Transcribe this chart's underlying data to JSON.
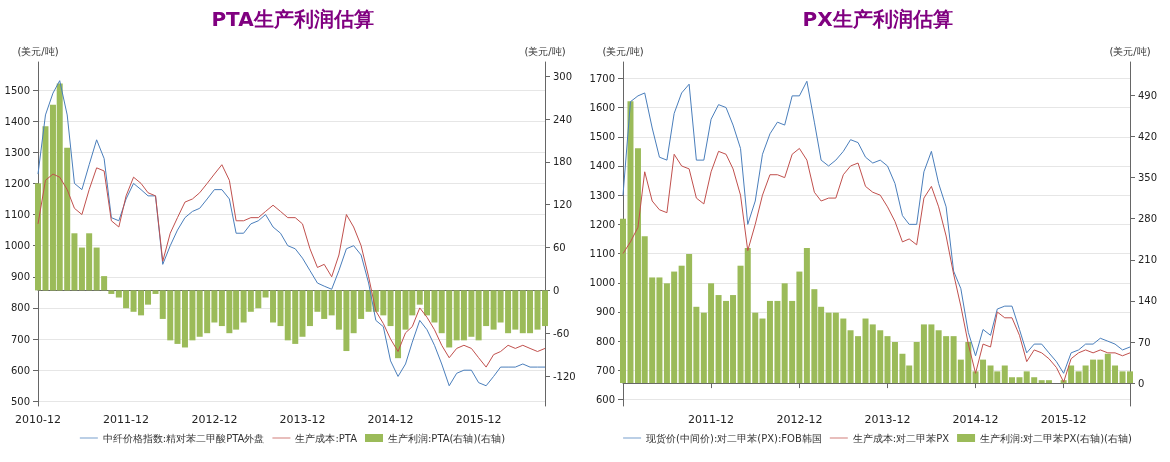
{
  "chart_data": [
    {
      "type": "line",
      "title": "PTA生产利润估算",
      "ylabel": "(美元/吨)",
      "y2label": "(美元/吨)",
      "x": [
        "2010-12",
        "2011-01",
        "2011-02",
        "2011-03",
        "2011-04",
        "2011-05",
        "2011-06",
        "2011-07",
        "2011-08",
        "2011-09",
        "2011-10",
        "2011-11",
        "2011-12",
        "2012-01",
        "2012-02",
        "2012-03",
        "2012-04",
        "2012-05",
        "2012-06",
        "2012-07",
        "2012-08",
        "2012-09",
        "2012-10",
        "2012-11",
        "2012-12",
        "2013-01",
        "2013-02",
        "2013-03",
        "2013-04",
        "2013-05",
        "2013-06",
        "2013-07",
        "2013-08",
        "2013-09",
        "2013-10",
        "2013-11",
        "2013-12",
        "2014-01",
        "2014-02",
        "2014-03",
        "2014-04",
        "2014-05",
        "2014-06",
        "2014-07",
        "2014-08",
        "2014-09",
        "2014-10",
        "2014-11",
        "2014-12",
        "2015-01",
        "2015-02",
        "2015-03",
        "2015-04",
        "2015-05",
        "2015-06",
        "2015-07",
        "2015-08",
        "2015-09",
        "2015-10",
        "2015-11",
        "2015-12",
        "2016-01",
        "2016-02",
        "2016-03",
        "2016-04",
        "2016-05",
        "2016-06",
        "2016-07",
        "2016-08",
        "2016-09"
      ],
      "series": [
        {
          "name": "中纤价格指数:精对苯二甲酸PTA外盘",
          "color": "#4a7ebb",
          "values": [
            1230,
            1420,
            1490,
            1530,
            1420,
            1200,
            1180,
            1260,
            1340,
            1280,
            1090,
            1080,
            1150,
            1200,
            1180,
            1160,
            1160,
            940,
            1000,
            1050,
            1090,
            1110,
            1120,
            1150,
            1180,
            1180,
            1150,
            1040,
            1040,
            1070,
            1080,
            1100,
            1060,
            1040,
            1000,
            990,
            960,
            920,
            880,
            870,
            860,
            920,
            990,
            1000,
            970,
            880,
            760,
            740,
            630,
            580,
            620,
            690,
            760,
            730,
            680,
            620,
            550,
            590,
            600,
            600,
            560,
            550,
            580,
            610,
            610,
            610,
            620,
            610,
            610,
            610
          ]
        },
        {
          "name": "生产成本:PTA",
          "color": "#c0504d",
          "values": [
            1070,
            1210,
            1230,
            1220,
            1180,
            1120,
            1100,
            1180,
            1250,
            1240,
            1080,
            1060,
            1160,
            1220,
            1200,
            1170,
            1160,
            950,
            1040,
            1090,
            1140,
            1150,
            1170,
            1200,
            1230,
            1260,
            1210,
            1080,
            1080,
            1090,
            1090,
            1110,
            1130,
            1110,
            1090,
            1090,
            1070,
            990,
            930,
            940,
            900,
            970,
            1100,
            1060,
            1000,
            900,
            790,
            750,
            700,
            660,
            720,
            740,
            800,
            770,
            730,
            680,
            640,
            670,
            680,
            670,
            640,
            610,
            650,
            660,
            680,
            670,
            680,
            670,
            660,
            670
          ]
        },
        {
          "name": "生产利润:PTA(右轴)(右轴)",
          "type": "bar",
          "axis": "y2",
          "color": "#9bbb59",
          "values": [
            150,
            230,
            260,
            290,
            200,
            80,
            60,
            80,
            60,
            20,
            -5,
            -10,
            -25,
            -30,
            -35,
            -20,
            -5,
            -40,
            -70,
            -75,
            -80,
            -70,
            -65,
            -60,
            -45,
            -50,
            -60,
            -55,
            -45,
            -30,
            -25,
            -10,
            -45,
            -50,
            -70,
            -75,
            -65,
            -50,
            -30,
            -40,
            -35,
            -55,
            -85,
            -60,
            -40,
            -30,
            -30,
            -35,
            -50,
            -95,
            -55,
            -35,
            -20,
            -35,
            -45,
            -60,
            -80,
            -70,
            -70,
            -65,
            -70,
            -50,
            -55,
            -45,
            -60,
            -55,
            -60,
            -60,
            -55,
            -50
          ]
        }
      ],
      "xlim": [
        "2010-12",
        "2016-09"
      ],
      "xticks": [
        "2010-12",
        "2011-12",
        "2012-12",
        "2013-12",
        "2014-12",
        "2015-12"
      ],
      "ylim": [
        485,
        1590
      ],
      "yticks": [
        500,
        600,
        700,
        800,
        900,
        1000,
        1100,
        1200,
        1300,
        1400,
        1500
      ],
      "y2lim": [
        -162,
        320
      ],
      "y2ticks": [
        -120,
        -60,
        0,
        60,
        120,
        180,
        240,
        300
      ],
      "grid": "y",
      "legend": "bottom",
      "marker": "none"
    },
    {
      "type": "line",
      "title": "PX生产利润估算",
      "ylabel": "(美元/吨)",
      "y2label": "(美元/吨)",
      "x": [
        "2010-12",
        "2011-01",
        "2011-02",
        "2011-03",
        "2011-04",
        "2011-05",
        "2011-06",
        "2011-07",
        "2011-08",
        "2011-09",
        "2011-10",
        "2011-11",
        "2011-12",
        "2012-01",
        "2012-02",
        "2012-03",
        "2012-04",
        "2012-05",
        "2012-06",
        "2012-07",
        "2012-08",
        "2012-09",
        "2012-10",
        "2012-11",
        "2012-12",
        "2013-01",
        "2013-02",
        "2013-03",
        "2013-04",
        "2013-05",
        "2013-06",
        "2013-07",
        "2013-08",
        "2013-09",
        "2013-10",
        "2013-11",
        "2013-12",
        "2014-01",
        "2014-02",
        "2014-03",
        "2014-04",
        "2014-05",
        "2014-06",
        "2014-07",
        "2014-08",
        "2014-09",
        "2014-10",
        "2014-11",
        "2014-12",
        "2015-01",
        "2015-02",
        "2015-03",
        "2015-04",
        "2015-05",
        "2015-06",
        "2015-07",
        "2015-08",
        "2015-09",
        "2015-10",
        "2015-11",
        "2015-12",
        "2016-01",
        "2016-02",
        "2016-03",
        "2016-04",
        "2016-05",
        "2016-06",
        "2016-07",
        "2016-08",
        "2016-09"
      ],
      "series": [
        {
          "name": "现货价(中间价):对二甲苯(PX):FOB韩国",
          "color": "#4a7ebb",
          "values": [
            1300,
            1620,
            1640,
            1650,
            1530,
            1430,
            1420,
            1580,
            1650,
            1680,
            1420,
            1420,
            1560,
            1610,
            1600,
            1540,
            1460,
            1200,
            1280,
            1440,
            1510,
            1550,
            1540,
            1640,
            1640,
            1690,
            1550,
            1420,
            1400,
            1420,
            1450,
            1490,
            1480,
            1430,
            1410,
            1420,
            1400,
            1340,
            1230,
            1200,
            1200,
            1380,
            1450,
            1340,
            1260,
            1040,
            980,
            830,
            750,
            840,
            820,
            910,
            920,
            920,
            840,
            760,
            790,
            790,
            760,
            730,
            690,
            760,
            770,
            790,
            790,
            810,
            800,
            790,
            770,
            780
          ]
        },
        {
          "name": "生产成本:对二甲苯PX",
          "color": "#c0504d",
          "values": [
            1100,
            1140,
            1190,
            1380,
            1280,
            1250,
            1240,
            1440,
            1400,
            1390,
            1290,
            1270,
            1380,
            1450,
            1440,
            1390,
            1300,
            1110,
            1200,
            1300,
            1370,
            1370,
            1360,
            1440,
            1460,
            1420,
            1310,
            1280,
            1290,
            1290,
            1370,
            1400,
            1410,
            1330,
            1310,
            1300,
            1260,
            1210,
            1140,
            1150,
            1130,
            1290,
            1330,
            1260,
            1160,
            1030,
            920,
            790,
            690,
            790,
            780,
            900,
            880,
            880,
            820,
            730,
            770,
            760,
            740,
            710,
            660,
            740,
            760,
            770,
            760,
            770,
            760,
            760,
            750,
            760
          ]
        },
        {
          "name": "生产利润:对二甲苯PX(右轴)(右轴)",
          "type": "bar",
          "axis": "y2",
          "color": "#9bbb59",
          "values": [
            280,
            480,
            400,
            250,
            180,
            180,
            170,
            190,
            200,
            220,
            130,
            120,
            170,
            150,
            140,
            150,
            200,
            230,
            120,
            110,
            140,
            140,
            170,
            140,
            190,
            230,
            160,
            130,
            120,
            120,
            110,
            90,
            80,
            110,
            100,
            90,
            80,
            70,
            50,
            30,
            70,
            100,
            100,
            90,
            80,
            80,
            40,
            70,
            20,
            40,
            30,
            20,
            30,
            10,
            10,
            20,
            10,
            5,
            5,
            0,
            5,
            30,
            20,
            30,
            40,
            40,
            50,
            30,
            20,
            20
          ]
        }
      ],
      "xlim": [
        "2010-12",
        "2016-09"
      ],
      "xticks": [
        "2011-12",
        "2012-12",
        "2013-12",
        "2014-12",
        "2015-12"
      ],
      "ylim": [
        578,
        1756
      ],
      "yticks": [
        600,
        700,
        800,
        900,
        1000,
        1100,
        1200,
        1300,
        1400,
        1500,
        1600,
        1700
      ],
      "y2lim": [
        -39,
        547
      ],
      "y2ticks": [
        0,
        70,
        140,
        210,
        280,
        350,
        420,
        490
      ],
      "grid": "y",
      "legend": "bottom",
      "marker": "none"
    }
  ]
}
